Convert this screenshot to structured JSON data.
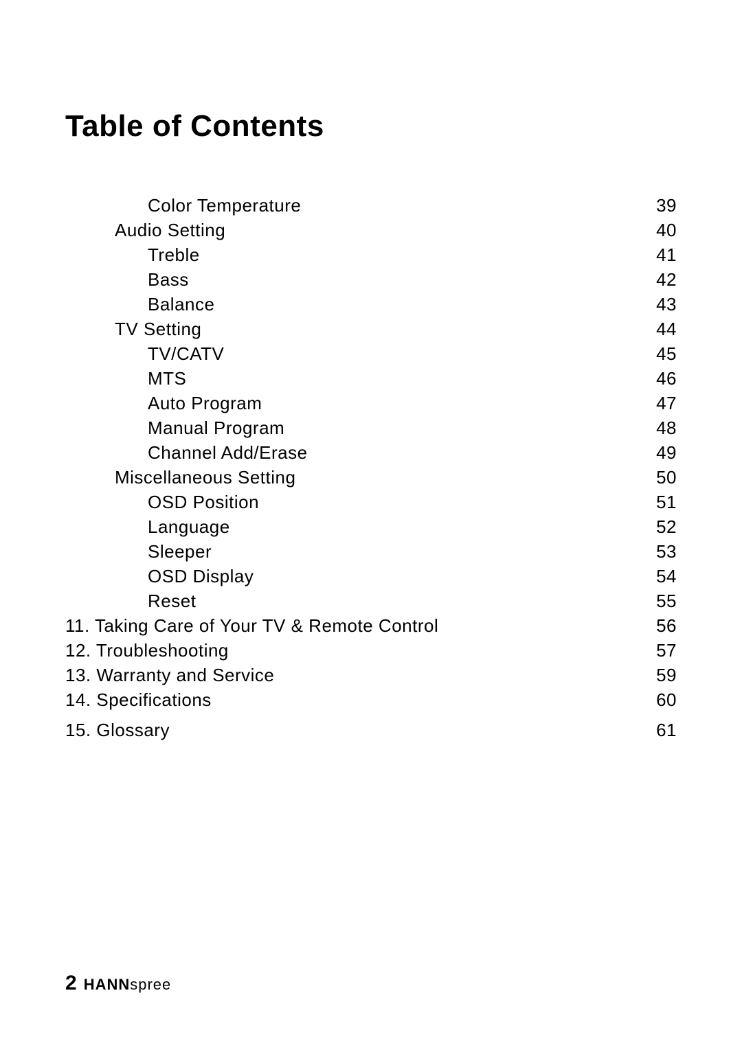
{
  "title": "Table of Contents",
  "title_fontsize": 44,
  "title_fontweight": 700,
  "toc": {
    "fontsize": 26,
    "line_height": 36,
    "dot_color": "#000000",
    "entries": [
      {
        "label": "Color Temperature",
        "page": "39",
        "indent": 2,
        "space_after": 0
      },
      {
        "label": "Audio Setting",
        "page": "40",
        "indent": 1,
        "space_after": 0
      },
      {
        "label": "Treble",
        "page": "41",
        "indent": 2,
        "space_after": 0
      },
      {
        "label": "Bass",
        "page": "42",
        "indent": 2,
        "space_after": 0
      },
      {
        "label": "Balance",
        "page": "43",
        "indent": 2,
        "space_after": 0
      },
      {
        "label": "TV Setting",
        "page": "44",
        "indent": 1,
        "space_after": 0
      },
      {
        "label": "TV/CATV",
        "page": "45",
        "indent": 2,
        "space_after": 0
      },
      {
        "label": "MTS",
        "page": "46",
        "indent": 2,
        "space_after": 0
      },
      {
        "label": "Auto Program",
        "page": "47",
        "indent": 2,
        "space_after": 0
      },
      {
        "label": "Manual Program",
        "page": "48",
        "indent": 2,
        "space_after": 0
      },
      {
        "label": "Channel Add/Erase",
        "page": "49",
        "indent": 2,
        "space_after": 0
      },
      {
        "label": "Miscellaneous Setting",
        "page": "50",
        "indent": 1,
        "space_after": 0
      },
      {
        "label": "OSD Position",
        "page": "51",
        "indent": 2,
        "space_after": 0
      },
      {
        "label": "Language",
        "page": "52",
        "indent": 2,
        "space_after": 0
      },
      {
        "label": "Sleeper",
        "page": "53",
        "indent": 2,
        "space_after": 0
      },
      {
        "label": "OSD Display",
        "page": "54",
        "indent": 2,
        "space_after": 0
      },
      {
        "label": "Reset",
        "page": "55",
        "indent": 2,
        "space_after": 0
      },
      {
        "label": "11. Taking Care of Your TV & Remote Control",
        "page": "56",
        "indent": 0,
        "space_after": 0
      },
      {
        "label": "12. Troubleshooting",
        "page": "57",
        "indent": 0,
        "space_after": 0
      },
      {
        "label": "13. Warranty and Service",
        "page": "59",
        "indent": 0,
        "space_after": 0
      },
      {
        "label": "14. Specifications",
        "page": "60",
        "indent": 0,
        "space_after": 8
      },
      {
        "label": "15. Glossary",
        "page": "61",
        "indent": 0,
        "space_after": 0
      }
    ]
  },
  "footer": {
    "page_number": "2",
    "page_number_fontsize": 30,
    "brand_bold": "HANN",
    "brand_light": "spree",
    "brand_fontsize": 22
  },
  "colors": {
    "text": "#000000",
    "background": "#ffffff"
  }
}
